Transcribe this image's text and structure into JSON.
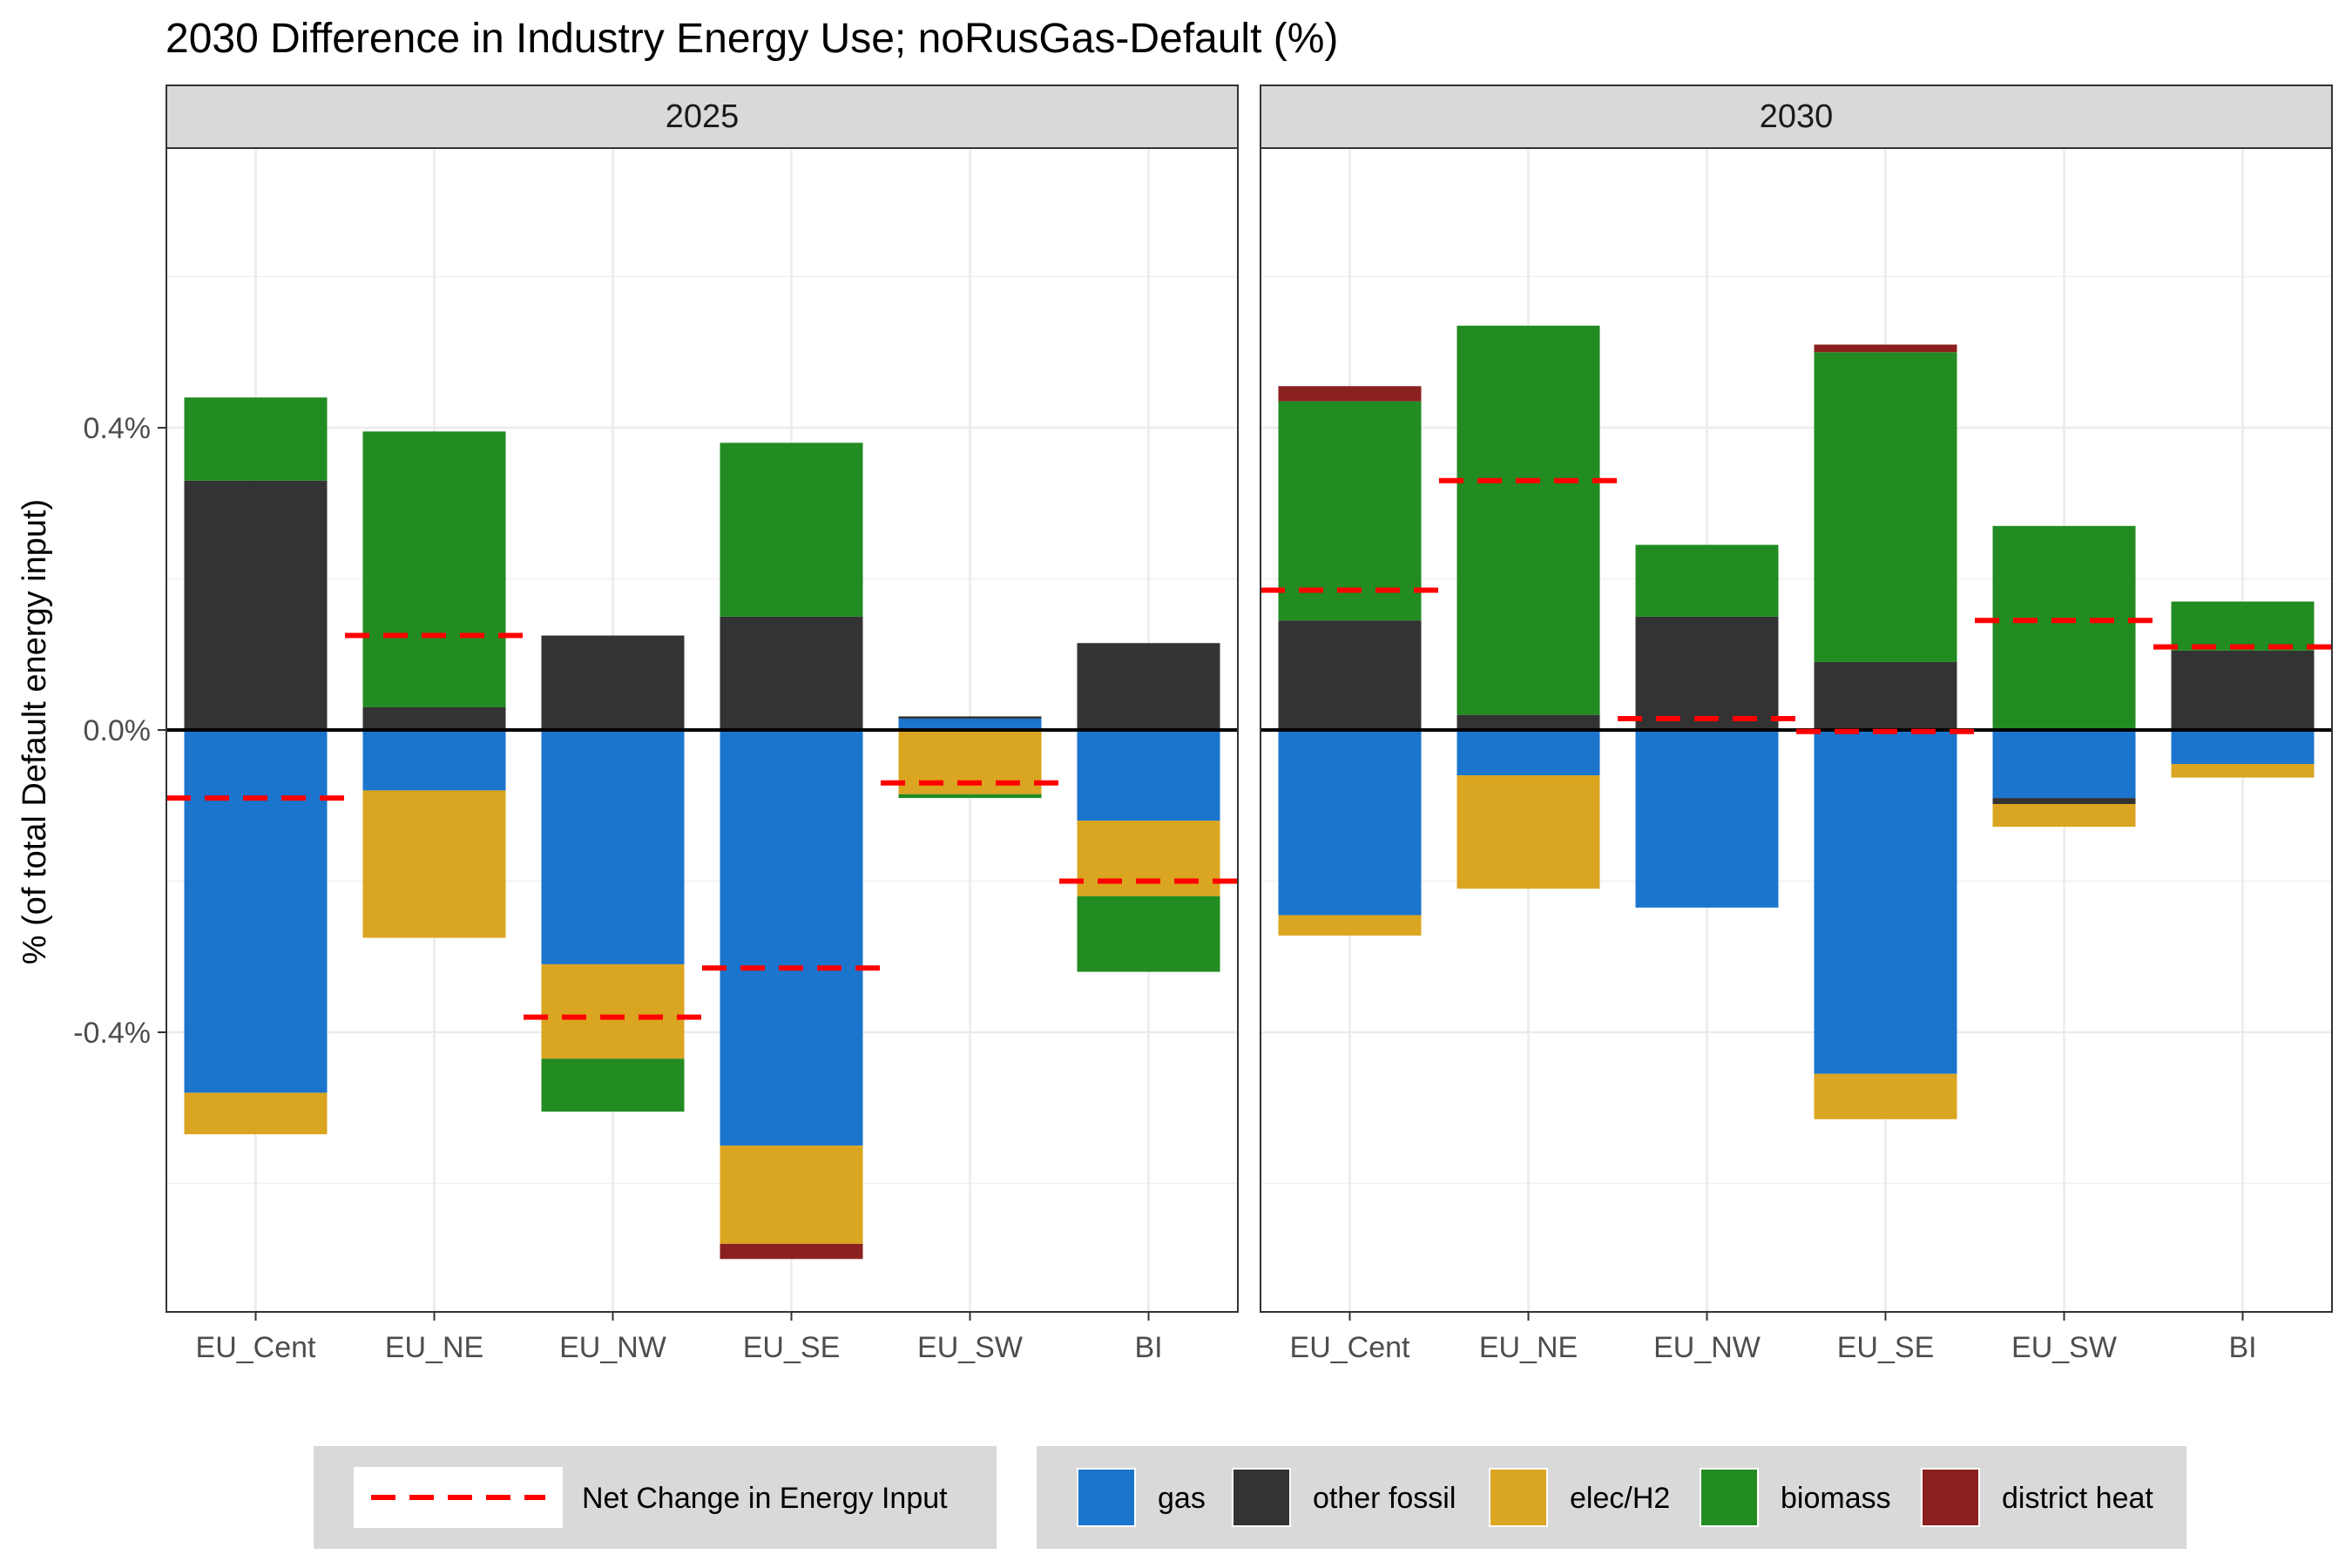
{
  "chart_data": {
    "type": "bar",
    "stacked": true,
    "title": "2030 Difference in Industry Energy Use; noRusGas-Default (%)",
    "ylabel": "% (of total Default energy input)",
    "xlabel": "",
    "ylim": [
      -0.77,
      0.77
    ],
    "yticks": [
      -0.4,
      0.0,
      0.4
    ],
    "ytick_labels": [
      "-0.4%",
      "0.0%",
      "0.4%"
    ],
    "grid": true,
    "categories": [
      "EU_Cent",
      "EU_NE",
      "EU_NW",
      "EU_SE",
      "EU_SW",
      "BI"
    ],
    "legend_position": "bottom",
    "net_label": "Net Change in Energy Input",
    "colors": {
      "gas": "#1b75cd",
      "other fossil": "#333333",
      "elec/H2": "#daa520",
      "biomass": "#228b22",
      "district heat": "#8b2020",
      "net": "#ff0000"
    },
    "series_order": [
      "gas",
      "other fossil",
      "elec/H2",
      "biomass",
      "district heat"
    ],
    "panels": [
      {
        "label": "2025",
        "series": [
          {
            "name": "gas",
            "values": [
              -0.48,
              -0.08,
              -0.31,
              -0.55,
              0.015,
              -0.12
            ]
          },
          {
            "name": "other fossil",
            "values": [
              0.33,
              0.03,
              0.125,
              0.15,
              0.003,
              0.115
            ]
          },
          {
            "name": "elec/H2",
            "values": [
              -0.055,
              -0.195,
              -0.125,
              -0.13,
              -0.085,
              -0.1
            ]
          },
          {
            "name": "biomass",
            "values": [
              0.11,
              0.365,
              -0.07,
              0.23,
              -0.005,
              -0.1
            ]
          },
          {
            "name": "district heat",
            "values": [
              0,
              0,
              0,
              -0.02,
              0,
              0
            ]
          }
        ],
        "net": [
          -0.09,
          0.125,
          -0.38,
          -0.315,
          -0.07,
          -0.2
        ]
      },
      {
        "label": "2030",
        "series": [
          {
            "name": "gas",
            "values": [
              -0.245,
              -0.06,
              -0.235,
              -0.455,
              -0.09,
              -0.045
            ]
          },
          {
            "name": "other fossil",
            "values": [
              0.145,
              0.02,
              0.15,
              0.09,
              -0.008,
              0.105
            ]
          },
          {
            "name": "elec/H2",
            "values": [
              -0.027,
              -0.15,
              0,
              -0.06,
              -0.03,
              -0.018
            ]
          },
          {
            "name": "biomass",
            "values": [
              0.29,
              0.515,
              0.095,
              0.41,
              0.27,
              0.065
            ]
          },
          {
            "name": "district heat",
            "values": [
              0.02,
              0,
              0,
              0.01,
              0,
              0
            ]
          }
        ],
        "net": [
          0.185,
          0.33,
          0.015,
          -0.002,
          0.145,
          0.11
        ]
      }
    ]
  }
}
